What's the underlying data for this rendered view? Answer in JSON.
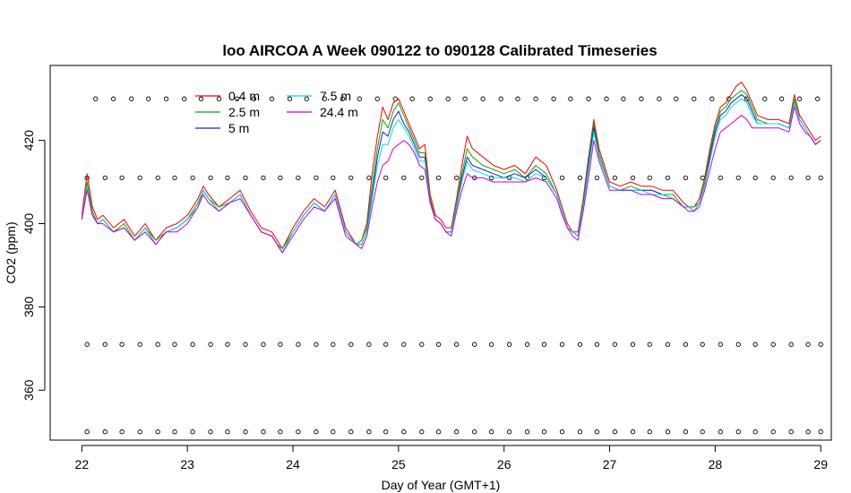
{
  "chart_data": {
    "type": "line",
    "title": "loo AIRCOA A  Week 090122 to 090128  Calibrated Timeseries",
    "xlabel": "Day of Year (GMT+1)",
    "ylabel": "CO2 (ppm)",
    "xlim": [
      21.7,
      29.1
    ],
    "ylim": [
      348,
      438
    ],
    "x_ticks": [
      22,
      23,
      24,
      25,
      26,
      27,
      28,
      29
    ],
    "y_ticks": [
      360,
      380,
      400,
      420
    ],
    "grid": false,
    "legend_position": "top-left",
    "series": [
      {
        "name": "0.4 m",
        "color": "#ff0000",
        "x": [
          22.0,
          22.05,
          22.1,
          22.15,
          22.2,
          22.3,
          22.4,
          22.5,
          22.6,
          22.7,
          22.8,
          22.9,
          23.0,
          23.1,
          23.15,
          23.2,
          23.3,
          23.4,
          23.5,
          23.6,
          23.7,
          23.8,
          23.85,
          23.9,
          24.0,
          24.1,
          24.2,
          24.3,
          24.4,
          24.5,
          24.6,
          24.65,
          24.7,
          24.75,
          24.8,
          24.85,
          24.9,
          24.95,
          25.0,
          25.05,
          25.1,
          25.15,
          25.2,
          25.25,
          25.3,
          25.35,
          25.4,
          25.45,
          25.5,
          25.55,
          25.6,
          25.65,
          25.7,
          25.8,
          25.9,
          26.0,
          26.1,
          26.2,
          26.3,
          26.4,
          26.5,
          26.55,
          26.6,
          26.65,
          26.7,
          26.75,
          26.8,
          26.85,
          26.9,
          27.0,
          27.1,
          27.2,
          27.3,
          27.4,
          27.5,
          27.6,
          27.7,
          27.75,
          27.8,
          27.85,
          27.9,
          27.95,
          28.0,
          28.05,
          28.1,
          28.15,
          28.2,
          28.25,
          28.3,
          28.35,
          28.4,
          28.5,
          28.6,
          28.7,
          28.75,
          28.8,
          28.85,
          28.9,
          28.95,
          29.0
        ],
        "y": [
          402,
          412,
          404,
          401,
          402,
          399,
          401,
          397,
          400,
          396,
          399,
          400,
          402,
          406,
          409,
          407,
          404,
          406,
          408,
          403,
          399,
          398,
          396,
          394,
          399,
          403,
          406,
          404,
          408,
          399,
          395,
          396,
          400,
          412,
          421,
          428,
          425,
          429,
          430,
          427,
          424,
          421,
          418,
          419,
          407,
          402,
          401,
          399,
          399,
          406,
          414,
          421,
          418,
          416,
          414,
          413,
          414,
          412,
          416,
          414,
          408,
          404,
          400,
          398,
          398,
          406,
          416,
          425,
          418,
          410,
          409,
          410,
          409,
          409,
          408,
          408,
          405,
          404,
          404,
          406,
          411,
          418,
          424,
          428,
          429,
          431,
          433,
          434,
          432,
          429,
          426,
          425,
          425,
          424,
          431,
          426,
          424,
          422,
          420,
          421
        ]
      },
      {
        "name": "2.5 m",
        "color": "#00b000",
        "x": [
          22.0,
          22.05,
          22.1,
          22.15,
          22.2,
          22.3,
          22.4,
          22.5,
          22.6,
          22.7,
          22.8,
          22.9,
          23.0,
          23.1,
          23.15,
          23.2,
          23.3,
          23.4,
          23.5,
          23.6,
          23.7,
          23.8,
          23.85,
          23.9,
          24.0,
          24.1,
          24.2,
          24.3,
          24.4,
          24.5,
          24.6,
          24.65,
          24.7,
          24.75,
          24.8,
          24.85,
          24.9,
          24.95,
          25.0,
          25.05,
          25.1,
          25.15,
          25.2,
          25.25,
          25.3,
          25.35,
          25.4,
          25.45,
          25.5,
          25.55,
          25.6,
          25.65,
          25.7,
          25.8,
          25.9,
          26.0,
          26.1,
          26.2,
          26.3,
          26.4,
          26.5,
          26.55,
          26.6,
          26.65,
          26.7,
          26.75,
          26.8,
          26.85,
          26.9,
          27.0,
          27.1,
          27.2,
          27.3,
          27.4,
          27.5,
          27.6,
          27.7,
          27.75,
          27.8,
          27.85,
          27.9,
          27.95,
          28.0,
          28.05,
          28.1,
          28.15,
          28.2,
          28.25,
          28.3,
          28.35,
          28.4,
          28.5,
          28.6,
          28.7,
          28.75,
          28.8,
          28.85,
          28.9,
          28.95,
          29.0
        ],
        "y": [
          401,
          410,
          403,
          400,
          401,
          398,
          400,
          396,
          399,
          396,
          398,
          399,
          401,
          405,
          408,
          406,
          404,
          405,
          407,
          402,
          398,
          397,
          395,
          394,
          398,
          402,
          405,
          403,
          407,
          398,
          395,
          396,
          399,
          409,
          418,
          425,
          423,
          427,
          429,
          426,
          423,
          420,
          417,
          417,
          406,
          401,
          400,
          398,
          398,
          405,
          412,
          418,
          416,
          414,
          413,
          412,
          413,
          411,
          414,
          412,
          407,
          403,
          399,
          398,
          397,
          405,
          415,
          424,
          417,
          409,
          408,
          409,
          408,
          408,
          407,
          407,
          404,
          404,
          404,
          405,
          410,
          417,
          423,
          427,
          428,
          430,
          431,
          432,
          431,
          428,
          425,
          424,
          424,
          423,
          430,
          425,
          423,
          421,
          419,
          420
        ]
      },
      {
        "name": "5 m",
        "color": "#2020c0",
        "x": [
          22.0,
          22.05,
          22.1,
          22.15,
          22.2,
          22.3,
          22.4,
          22.5,
          22.6,
          22.7,
          22.8,
          22.9,
          23.0,
          23.1,
          23.15,
          23.2,
          23.3,
          23.4,
          23.5,
          23.6,
          23.7,
          23.8,
          23.85,
          23.9,
          24.0,
          24.1,
          24.2,
          24.3,
          24.4,
          24.5,
          24.6,
          24.65,
          24.7,
          24.75,
          24.8,
          24.85,
          24.9,
          24.95,
          25.0,
          25.05,
          25.1,
          25.15,
          25.2,
          25.25,
          25.3,
          25.35,
          25.4,
          25.45,
          25.5,
          25.55,
          25.6,
          25.65,
          25.7,
          25.8,
          25.9,
          26.0,
          26.1,
          26.2,
          26.3,
          26.4,
          26.5,
          26.55,
          26.6,
          26.65,
          26.7,
          26.75,
          26.8,
          26.85,
          26.9,
          27.0,
          27.1,
          27.2,
          27.3,
          27.4,
          27.5,
          27.6,
          27.7,
          27.75,
          27.8,
          27.85,
          27.9,
          27.95,
          28.0,
          28.05,
          28.1,
          28.15,
          28.2,
          28.25,
          28.3,
          28.35,
          28.4,
          28.5,
          28.6,
          28.7,
          28.75,
          28.8,
          28.85,
          28.9,
          28.95,
          29.0
        ],
        "y": [
          401,
          409,
          402,
          400,
          401,
          398,
          399,
          396,
          399,
          395,
          398,
          399,
          401,
          404,
          408,
          406,
          403,
          405,
          407,
          402,
          398,
          397,
          395,
          393,
          398,
          402,
          405,
          403,
          407,
          398,
          395,
          395,
          398,
          407,
          416,
          422,
          421,
          425,
          427,
          424,
          422,
          419,
          416,
          416,
          405,
          401,
          400,
          398,
          398,
          404,
          411,
          416,
          414,
          413,
          412,
          411,
          412,
          411,
          413,
          411,
          407,
          403,
          399,
          398,
          397,
          404,
          414,
          423,
          416,
          409,
          408,
          408,
          408,
          408,
          407,
          406,
          404,
          404,
          403,
          405,
          409,
          416,
          422,
          426,
          427,
          429,
          430,
          431,
          430,
          427,
          424,
          424,
          424,
          423,
          429,
          425,
          423,
          421,
          419,
          420
        ]
      },
      {
        "name": "7.5 m",
        "color": "#00e0e0",
        "x": [
          22.0,
          22.05,
          22.1,
          22.15,
          22.2,
          22.3,
          22.4,
          22.5,
          22.6,
          22.7,
          22.8,
          22.9,
          23.0,
          23.1,
          23.15,
          23.2,
          23.3,
          23.4,
          23.5,
          23.6,
          23.7,
          23.8,
          23.85,
          23.9,
          24.0,
          24.1,
          24.2,
          24.3,
          24.4,
          24.5,
          24.6,
          24.65,
          24.7,
          24.75,
          24.8,
          24.85,
          24.9,
          24.95,
          25.0,
          25.05,
          25.1,
          25.15,
          25.2,
          25.25,
          25.3,
          25.35,
          25.4,
          25.45,
          25.5,
          25.55,
          25.6,
          25.65,
          25.7,
          25.8,
          25.9,
          26.0,
          26.1,
          26.2,
          26.3,
          26.4,
          26.5,
          26.55,
          26.6,
          26.65,
          26.7,
          26.75,
          26.8,
          26.85,
          26.9,
          27.0,
          27.1,
          27.2,
          27.3,
          27.4,
          27.5,
          27.6,
          27.7,
          27.75,
          27.8,
          27.85,
          27.9,
          27.95,
          28.0,
          28.05,
          28.1,
          28.15,
          28.2,
          28.25,
          28.3,
          28.35,
          28.4,
          28.5,
          28.6,
          28.7,
          28.75,
          28.8,
          28.85,
          28.9,
          28.95,
          29.0
        ],
        "y": [
          401,
          409,
          402,
          400,
          401,
          398,
          399,
          396,
          399,
          395,
          398,
          399,
          401,
          404,
          408,
          406,
          403,
          405,
          407,
          402,
          398,
          397,
          395,
          393,
          398,
          402,
          405,
          403,
          407,
          398,
          395,
          395,
          398,
          406,
          414,
          419,
          419,
          423,
          425,
          423,
          421,
          418,
          415,
          415,
          405,
          401,
          400,
          398,
          398,
          404,
          410,
          415,
          413,
          412,
          411,
          411,
          411,
          410,
          412,
          411,
          407,
          403,
          399,
          398,
          397,
          404,
          413,
          422,
          416,
          409,
          408,
          408,
          408,
          407,
          407,
          406,
          404,
          404,
          403,
          405,
          409,
          415,
          421,
          425,
          426,
          428,
          429,
          430,
          429,
          426,
          424,
          424,
          424,
          423,
          429,
          425,
          423,
          421,
          419,
          420
        ]
      },
      {
        "name": "24.4 m",
        "color": "#d000d0",
        "x": [
          22.0,
          22.05,
          22.1,
          22.15,
          22.2,
          22.3,
          22.4,
          22.5,
          22.6,
          22.7,
          22.8,
          22.9,
          23.0,
          23.1,
          23.15,
          23.2,
          23.3,
          23.4,
          23.5,
          23.6,
          23.7,
          23.8,
          23.85,
          23.9,
          24.0,
          24.1,
          24.2,
          24.3,
          24.4,
          24.5,
          24.6,
          24.65,
          24.7,
          24.75,
          24.8,
          24.85,
          24.9,
          24.95,
          25.0,
          25.05,
          25.1,
          25.15,
          25.2,
          25.25,
          25.3,
          25.35,
          25.4,
          25.45,
          25.5,
          25.55,
          25.6,
          25.65,
          25.7,
          25.8,
          25.9,
          26.0,
          26.1,
          26.2,
          26.3,
          26.4,
          26.5,
          26.55,
          26.6,
          26.65,
          26.7,
          26.75,
          26.8,
          26.85,
          26.9,
          27.0,
          27.1,
          27.2,
          27.3,
          27.4,
          27.5,
          27.6,
          27.7,
          27.75,
          27.8,
          27.85,
          27.9,
          27.95,
          28.0,
          28.05,
          28.1,
          28.15,
          28.2,
          28.25,
          28.3,
          28.35,
          28.4,
          28.5,
          28.6,
          28.7,
          28.75,
          28.8,
          28.85,
          28.9,
          28.95,
          29.0
        ],
        "y": [
          401,
          408,
          402,
          400,
          400,
          398,
          399,
          396,
          398,
          395,
          398,
          398,
          400,
          404,
          407,
          405,
          403,
          405,
          406,
          402,
          398,
          397,
          395,
          393,
          397,
          401,
          404,
          403,
          406,
          397,
          395,
          394,
          397,
          404,
          410,
          414,
          415,
          418,
          419,
          420,
          419,
          417,
          414,
          413,
          405,
          401,
          400,
          398,
          397,
          403,
          408,
          412,
          411,
          411,
          410,
          410,
          410,
          410,
          411,
          410,
          406,
          402,
          399,
          397,
          396,
          403,
          411,
          420,
          415,
          408,
          408,
          408,
          407,
          407,
          406,
          406,
          404,
          403,
          403,
          404,
          408,
          413,
          418,
          422,
          423,
          424,
          425,
          426,
          425,
          423,
          423,
          423,
          423,
          422,
          428,
          424,
          422,
          421,
          419,
          420
        ]
      }
    ],
    "reference_markers": [
      {
        "y": 430,
        "x": [
          22.13,
          22.3,
          22.47,
          22.63,
          22.8,
          22.97,
          23.13,
          23.3,
          23.47,
          23.63,
          23.8,
          23.97,
          24.13,
          24.3,
          24.47,
          24.63,
          24.8,
          24.97,
          25.13,
          25.3,
          25.47,
          25.63,
          25.8,
          25.97,
          26.13,
          26.3,
          26.47,
          26.63,
          26.8,
          26.97,
          27.13,
          27.3,
          27.47,
          27.63,
          27.8,
          27.97,
          28.13,
          28.3,
          28.47,
          28.63,
          28.8,
          28.97
        ]
      },
      {
        "y": 411,
        "x": [
          22.05,
          22.22,
          22.38,
          22.55,
          22.72,
          22.88,
          23.05,
          23.22,
          23.38,
          23.55,
          23.72,
          23.88,
          24.05,
          24.22,
          24.38,
          24.55,
          24.72,
          24.88,
          25.05,
          25.22,
          25.38,
          25.55,
          25.72,
          25.88,
          26.05,
          26.22,
          26.38,
          26.55,
          26.72,
          26.88,
          27.05,
          27.22,
          27.38,
          27.55,
          27.72,
          27.88,
          28.05,
          28.22,
          28.38,
          28.55,
          28.72,
          28.88,
          29.0
        ]
      },
      {
        "y": 371,
        "x": [
          22.05,
          22.22,
          22.38,
          22.55,
          22.72,
          22.88,
          23.05,
          23.22,
          23.38,
          23.55,
          23.72,
          23.88,
          24.05,
          24.22,
          24.38,
          24.55,
          24.72,
          24.88,
          25.05,
          25.22,
          25.38,
          25.55,
          25.72,
          25.88,
          26.05,
          26.22,
          26.38,
          26.55,
          26.72,
          26.88,
          27.05,
          27.22,
          27.38,
          27.55,
          27.72,
          27.88,
          28.05,
          28.22,
          28.38,
          28.55,
          28.72,
          28.88,
          29.0
        ]
      },
      {
        "y": 350,
        "x": [
          22.05,
          22.22,
          22.38,
          22.55,
          22.72,
          22.88,
          23.05,
          23.22,
          23.38,
          23.55,
          23.72,
          23.88,
          24.05,
          24.22,
          24.38,
          24.55,
          24.72,
          24.88,
          25.05,
          25.22,
          25.38,
          25.55,
          25.72,
          25.88,
          26.05,
          26.22,
          26.38,
          26.55,
          26.72,
          26.88,
          27.05,
          27.22,
          27.38,
          27.55,
          27.72,
          27.88,
          28.05,
          28.22,
          28.38,
          28.55,
          28.72,
          28.88,
          29.0
        ]
      }
    ]
  }
}
